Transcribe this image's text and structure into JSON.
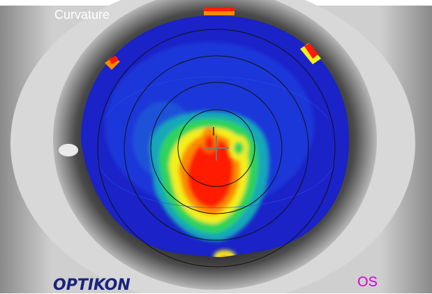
{
  "map": {
    "title": "Curvature",
    "eye_label": "OS"
  },
  "brand": {
    "logo_text": "OPTIKON"
  },
  "colors": {
    "background_blue": "#1a22c8",
    "steep_red": "#ff1a00",
    "eye_label_magenta": "#d000d0",
    "logo_navy": "#1a237e"
  }
}
